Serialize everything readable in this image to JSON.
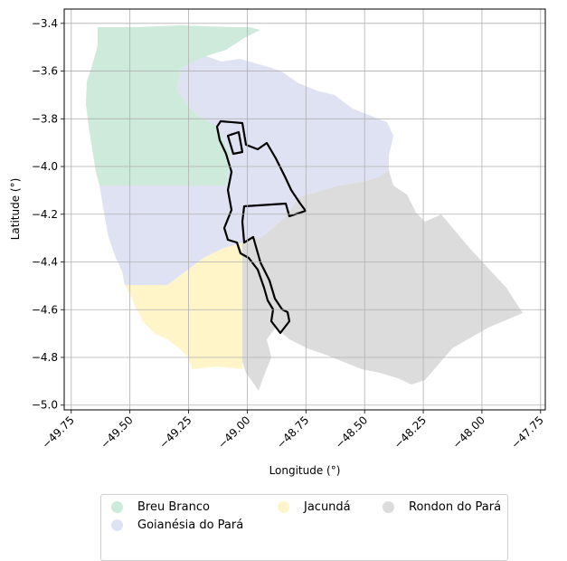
{
  "chart_data": {
    "type": "map",
    "xlabel": "Longitude (°)",
    "ylabel": "Latitude (°)",
    "xlim": [
      -49.78,
      -47.73
    ],
    "ylim": [
      -5.02,
      -3.34
    ],
    "xticks": [
      -49.75,
      -49.5,
      -49.25,
      -49.0,
      -48.75,
      -48.5,
      -48.25,
      -48.0,
      -47.75
    ],
    "xtick_labels": [
      "−49.75",
      "−49.50",
      "−49.25",
      "−49.00",
      "−48.75",
      "−48.50",
      "−48.25",
      "−48.00",
      "−47.75"
    ],
    "yticks": [
      -3.4,
      -3.6,
      -3.8,
      -4.0,
      -4.2,
      -4.4,
      -4.6,
      -4.8,
      -5.0
    ],
    "ytick_labels": [
      "−3.4",
      "−3.6",
      "−3.8",
      "−4.0",
      "−4.2",
      "−4.4",
      "−4.6",
      "−4.8",
      "−5.0"
    ],
    "grid": true,
    "legend_position": "bottom-center",
    "regions": [
      {
        "name": "Breu Branco",
        "color": "#cdeadb"
      },
      {
        "name": "Goianésia do Pará",
        "color": "#dfe2f2"
      },
      {
        "name": "Jacundá",
        "color": "#fff5c8"
      },
      {
        "name": "Rondon do Pará",
        "color": "#dcdcdc"
      }
    ]
  }
}
